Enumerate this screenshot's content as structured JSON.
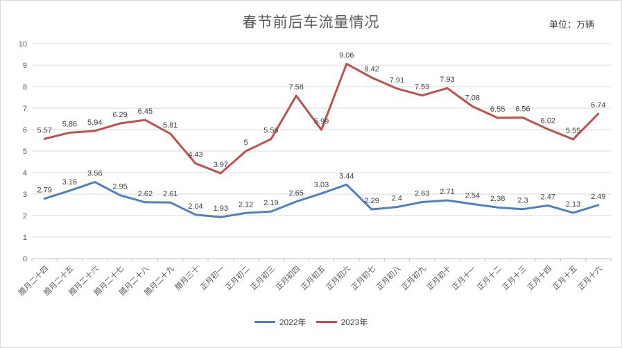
{
  "chart_data": {
    "type": "line",
    "title": "春节前后车流量情况",
    "unit_label": "单位：万辆",
    "categories": [
      "腊月二十四",
      "腊月二十五",
      "腊月二十六",
      "腊月二十七",
      "腊月二十八",
      "腊月二十九",
      "腊月三十",
      "正月初一",
      "正月初二",
      "正月初三",
      "正月初四",
      "正月初五",
      "正月初六",
      "正月初七",
      "正月初八",
      "正月初九",
      "正月初十",
      "正月十一",
      "正月十二",
      "正月十三",
      "正月十四",
      "正月十五",
      "正月十六"
    ],
    "series": [
      {
        "name": "2022年",
        "color": "#4F81BD",
        "values": [
          2.79,
          3.16,
          3.56,
          2.95,
          2.62,
          2.61,
          2.04,
          1.93,
          2.12,
          2.19,
          2.65,
          3.03,
          3.44,
          2.29,
          2.4,
          2.63,
          2.71,
          2.54,
          2.38,
          2.3,
          2.47,
          2.13,
          2.49
        ]
      },
      {
        "name": "2023年",
        "color": "#C0504D",
        "values": [
          5.57,
          5.86,
          5.94,
          6.29,
          6.45,
          5.81,
          4.43,
          3.97,
          5,
          5.56,
          7.58,
          5.99,
          9.06,
          8.42,
          7.91,
          7.59,
          7.93,
          7.08,
          6.55,
          6.56,
          6.02,
          5.55,
          6.74
        ]
      }
    ],
    "ylim": [
      0,
      10
    ],
    "y_ticks": [
      0,
      1,
      2,
      3,
      4,
      5,
      6,
      7,
      8,
      9,
      10
    ],
    "grid": true,
    "data_labels": true,
    "legend_position": "bottom",
    "style": {
      "grid_color": "#D9D9D9",
      "axis_color": "#BFBFBF",
      "tick_label_color": "#595959",
      "data_label_color": "#3F3F3F",
      "title_color": "#595959"
    }
  }
}
